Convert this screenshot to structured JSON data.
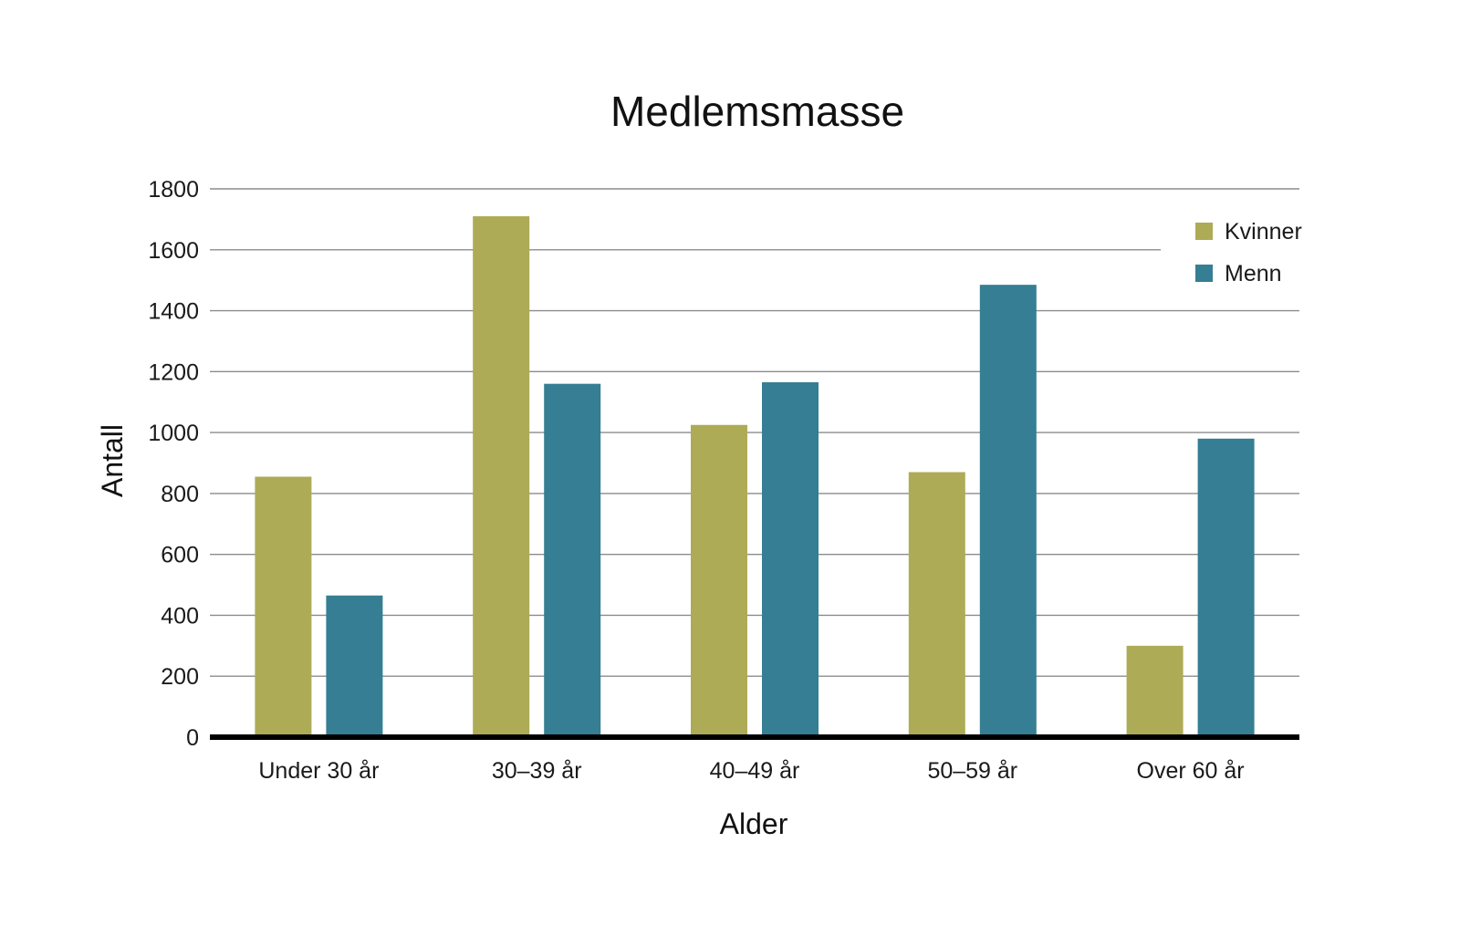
{
  "chart_data": {
    "type": "bar",
    "title": "Medlemsmasse",
    "xlabel": "Alder",
    "ylabel": "Antall",
    "categories": [
      "Under 30 år",
      "30–39 år",
      "40–49 år",
      "50–59 år",
      "Over 60 år"
    ],
    "series": [
      {
        "name": "Kvinner",
        "color": "#ADAB55",
        "values": [
          855,
          1710,
          1025,
          870,
          300
        ]
      },
      {
        "name": "Menn",
        "color": "#357E93",
        "values": [
          465,
          1160,
          1165,
          1485,
          980
        ]
      }
    ],
    "ylim": [
      0,
      1800
    ],
    "yticks": [
      "0",
      "200",
      "400",
      "600",
      "800",
      "1000",
      "1200",
      "1400",
      "1600",
      "1800"
    ],
    "grid": true,
    "legend_position": "top-right"
  }
}
